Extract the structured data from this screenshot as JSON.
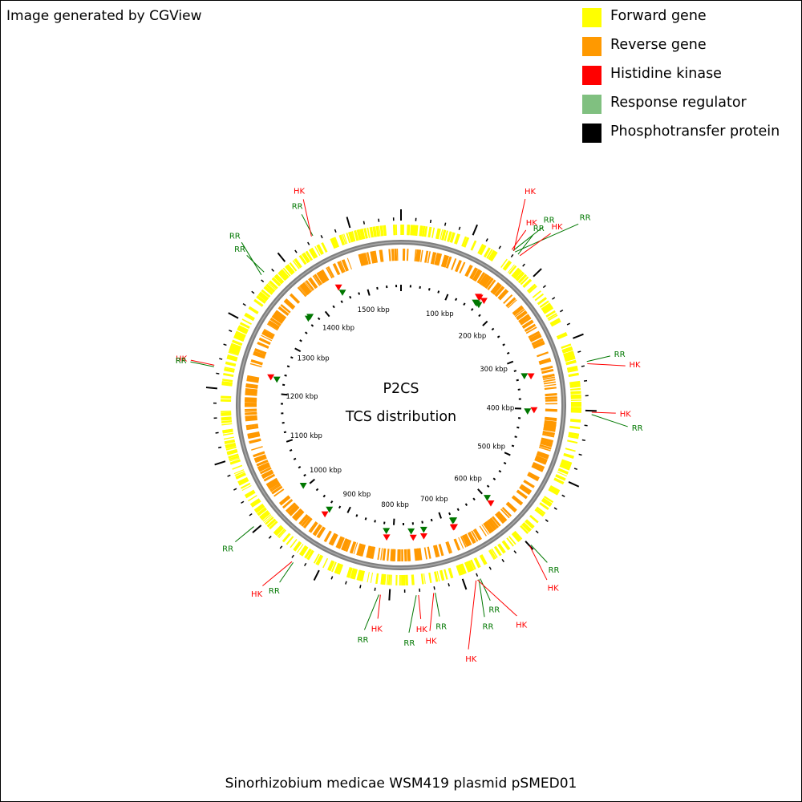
{
  "credit": "Image generated by CGView",
  "footer": "Sinorhizobium medicae WSM419 plasmid pSMED01",
  "center": {
    "line1": "P2CS",
    "line2": "TCS distribution"
  },
  "legend": [
    {
      "label": "Forward gene",
      "color": "#ffff00"
    },
    {
      "label": "Reverse gene",
      "color": "#ff9900"
    },
    {
      "label": "Histidine kinase",
      "color": "#ff0000"
    },
    {
      "label": "Response regulator",
      "color": "#80c080"
    },
    {
      "label": "Phosphotransfer protein",
      "color": "#000000"
    }
  ],
  "colors": {
    "forward": "#ffff00",
    "reverse": "#ff9900",
    "hk": "#ff0000",
    "rr": "#007700",
    "backbone": "#808080",
    "ticks": "#000000"
  },
  "sequence": {
    "length_kbp": 1570
  },
  "ruler_labels": [
    "100 kbp",
    "200 kbp",
    "300 kbp",
    "400 kbp",
    "500 kbp",
    "600 kbp",
    "700 kbp",
    "800 kbp",
    "900 kbp",
    "1000 kbp",
    "1100 kbp",
    "1200 kbp",
    "1300 kbp",
    "1400 kbp",
    "1500 kbp"
  ],
  "features": [
    {
      "type": "RR",
      "pos_kbp": 1450
    },
    {
      "type": "HK",
      "pos_kbp": 1448
    },
    {
      "type": "RR",
      "pos_kbp": 1370
    },
    {
      "type": "RR",
      "pos_kbp": 1365
    },
    {
      "type": "HK",
      "pos_kbp": 1230
    },
    {
      "type": "RR",
      "pos_kbp": 1228
    },
    {
      "type": "HK",
      "pos_kbp": 155
    },
    {
      "type": "RR",
      "pos_kbp": 157
    },
    {
      "type": "HK",
      "pos_kbp": 158
    },
    {
      "type": "RR",
      "pos_kbp": 160
    },
    {
      "type": "RR",
      "pos_kbp": 165
    },
    {
      "type": "HK",
      "pos_kbp": 168
    },
    {
      "type": "RR",
      "pos_kbp": 335
    },
    {
      "type": "HK",
      "pos_kbp": 338
    },
    {
      "type": "HK",
      "pos_kbp": 402
    },
    {
      "type": "RR",
      "pos_kbp": 405
    },
    {
      "type": "RR",
      "pos_kbp": 598
    },
    {
      "type": "HK",
      "pos_kbp": 600
    },
    {
      "type": "RR",
      "pos_kbp": 678
    },
    {
      "type": "RR",
      "pos_kbp": 680
    },
    {
      "type": "HK",
      "pos_kbp": 682
    },
    {
      "type": "HK",
      "pos_kbp": 684
    },
    {
      "type": "RR",
      "pos_kbp": 740
    },
    {
      "type": "HK",
      "pos_kbp": 742
    },
    {
      "type": "HK",
      "pos_kbp": 762
    },
    {
      "type": "RR",
      "pos_kbp": 765
    },
    {
      "type": "HK",
      "pos_kbp": 812
    },
    {
      "type": "RR",
      "pos_kbp": 814
    },
    {
      "type": "RR",
      "pos_kbp": 935
    },
    {
      "type": "HK",
      "pos_kbp": 937
    },
    {
      "type": "RR",
      "pos_kbp": 1005
    }
  ]
}
